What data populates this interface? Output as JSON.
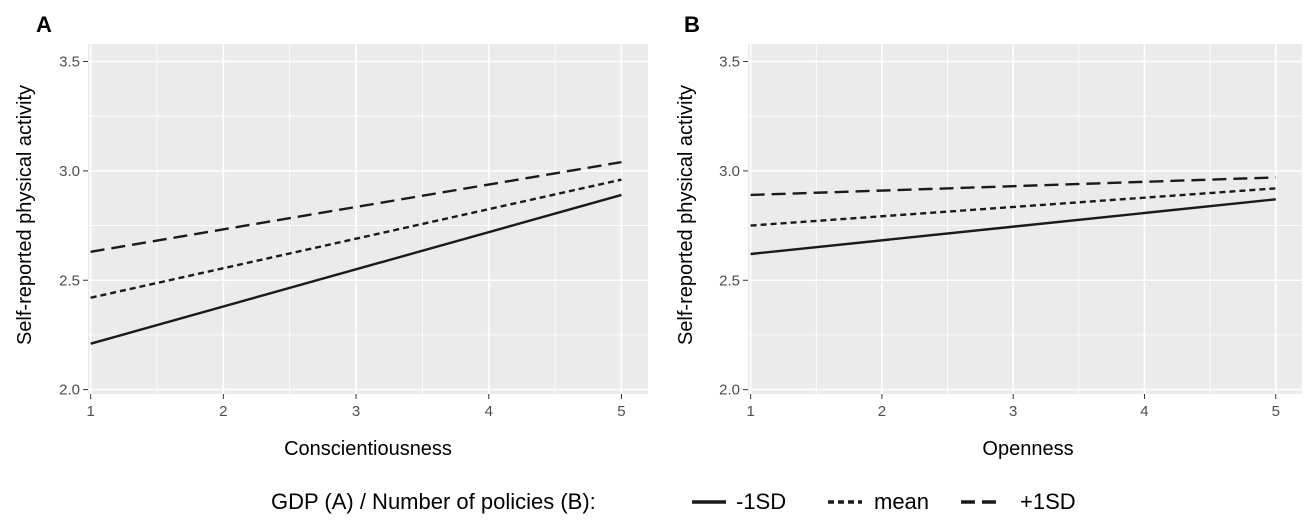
{
  "legend": {
    "title": "GDP (A) / Number of policies (B):",
    "entries": [
      {
        "label": "-1SD",
        "style": "solid"
      },
      {
        "label": "mean",
        "style": "dotted"
      },
      {
        "label": "+1SD",
        "style": "dashed"
      }
    ]
  },
  "colors": {
    "panel_bg": "#ebebeb",
    "grid": "#ffffff",
    "line": "#1a1a1a"
  },
  "chart_data": [
    {
      "type": "line",
      "panel": "A",
      "xlabel": "Conscientiousness",
      "ylabel": "Self-reported physical activity",
      "xlim": [
        0.98,
        5.2
      ],
      "ylim": [
        1.98,
        3.58
      ],
      "x_ticks": [
        1,
        2,
        3,
        4,
        5
      ],
      "y_ticks": [
        "2.0",
        "2.5",
        "3.0",
        "3.5"
      ],
      "grid": true,
      "series": [
        {
          "name": "-1SD",
          "x": [
            1,
            5
          ],
          "y": [
            2.21,
            2.89
          ]
        },
        {
          "name": "mean",
          "x": [
            1,
            5
          ],
          "y": [
            2.42,
            2.96
          ]
        },
        {
          "name": "+1SD",
          "x": [
            1,
            5
          ],
          "y": [
            2.63,
            3.04
          ]
        }
      ]
    },
    {
      "type": "line",
      "panel": "B",
      "xlabel": "Openness",
      "ylabel": "Self-reported physical activity",
      "xlim": [
        0.98,
        5.2
      ],
      "ylim": [
        1.98,
        3.58
      ],
      "x_ticks": [
        1,
        2,
        3,
        4,
        5
      ],
      "y_ticks": [
        "2.0",
        "2.5",
        "3.0",
        "3.5"
      ],
      "grid": true,
      "series": [
        {
          "name": "-1SD",
          "x": [
            1,
            5
          ],
          "y": [
            2.62,
            2.87
          ]
        },
        {
          "name": "mean",
          "x": [
            1,
            5
          ],
          "y": [
            2.75,
            2.92
          ]
        },
        {
          "name": "+1SD",
          "x": [
            1,
            5
          ],
          "y": [
            2.89,
            2.97
          ]
        }
      ]
    }
  ]
}
